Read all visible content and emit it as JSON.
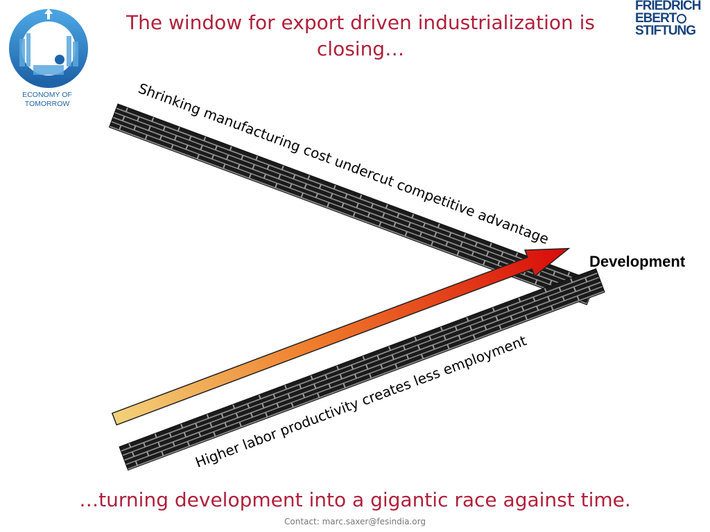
{
  "slide": {
    "title": "The window for export driven industrialization is closing…",
    "top_wall_label": "Shrinking manufacturing cost undercut competitive advantage",
    "bottom_wall_label": "Higher labor productivity creates less employment",
    "arrow_label": "Development",
    "bottom_text": "…turning development into a gigantic race against time.",
    "contact": "Contact: marc.saxer@fesindia.org"
  },
  "logos": {
    "left": {
      "name": "economy-of-tomorrow-logo",
      "text_line1": "ECONOMY OF",
      "text_line2": "TOMORROW"
    },
    "right": {
      "name": "friedrich-ebert-stiftung-logo",
      "line1": "FRIEDRICH",
      "line2": "EBERT",
      "line3": "STIFTUNG"
    }
  },
  "colors": {
    "title_red": "#b0203a",
    "arrow_start": "#f2d27a",
    "arrow_end": "#d80a0a",
    "wall": "#1b1b1b",
    "logo_blue": "#1e63a8",
    "fes_blue": "#16437e"
  }
}
